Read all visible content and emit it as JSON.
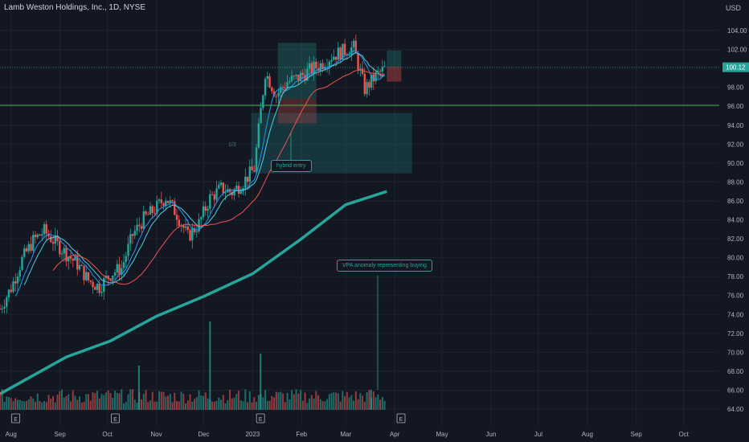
{
  "header": {
    "title": "Lamb Weston Holdings, Inc., 1D, NYSE",
    "currency": "USD"
  },
  "annotations": {
    "hybrid_entry": "hybrid entry",
    "vpa_note": "VPA anomaly representing buying",
    "ratio_label": "1/3"
  },
  "colors": {
    "background": "#131722",
    "bull": "#26a69a",
    "bear": "#ef5350",
    "sma_fast": "#2196f3",
    "sma_mid": "#4dd0e1",
    "sma_slow": "#ef5350",
    "sma_200": "#26a69a",
    "support_line": "#4caf50",
    "price_label_bg": "#26a69a"
  },
  "chart_data": {
    "type": "candlestick",
    "y_axis": {
      "ticks": [
        104,
        102,
        100,
        98,
        96,
        94,
        92,
        90,
        88,
        86,
        84,
        82,
        80,
        78,
        76,
        74,
        72,
        70,
        68,
        66,
        64
      ],
      "range": [
        63,
        105
      ],
      "unit": "USD"
    },
    "x_axis": {
      "labels": [
        "Aug",
        "Sep",
        "Oct",
        "Nov",
        "Dec",
        "2023",
        "Feb",
        "Mar",
        "Apr",
        "May",
        "Jun",
        "Jul",
        "Aug",
        "Sep",
        "Oct"
      ],
      "range": [
        "2022-07-25",
        "2023-10-20"
      ]
    },
    "last_price": "100.12",
    "support_level": 96.1,
    "daily_closes": [
      {
        "date": "2022-07-25",
        "close": 74.6
      },
      {
        "date": "2022-08-01",
        "close": 76.8
      },
      {
        "date": "2022-08-08",
        "close": 79.8
      },
      {
        "date": "2022-08-15",
        "close": 81.8
      },
      {
        "date": "2022-08-22",
        "close": 82.8
      },
      {
        "date": "2022-08-29",
        "close": 81.6
      },
      {
        "date": "2022-09-05",
        "close": 80.4
      },
      {
        "date": "2022-09-12",
        "close": 79.3
      },
      {
        "date": "2022-09-19",
        "close": 77.6
      },
      {
        "date": "2022-09-26",
        "close": 76.9
      },
      {
        "date": "2022-10-03",
        "close": 78.3
      },
      {
        "date": "2022-10-10",
        "close": 78.9
      },
      {
        "date": "2022-10-17",
        "close": 82.4
      },
      {
        "date": "2022-10-24",
        "close": 84.1
      },
      {
        "date": "2022-10-31",
        "close": 85.1
      },
      {
        "date": "2022-11-07",
        "close": 86.4
      },
      {
        "date": "2022-11-14",
        "close": 84.6
      },
      {
        "date": "2022-11-21",
        "close": 82.2
      },
      {
        "date": "2022-11-28",
        "close": 83.6
      },
      {
        "date": "2022-12-05",
        "close": 86.3
      },
      {
        "date": "2022-12-12",
        "close": 87.3
      },
      {
        "date": "2022-12-19",
        "close": 86.9
      },
      {
        "date": "2022-12-26",
        "close": 88.0
      },
      {
        "date": "2023-01-02",
        "close": 89.4
      },
      {
        "date": "2023-01-09",
        "close": 99.6
      },
      {
        "date": "2023-01-16",
        "close": 97.2
      },
      {
        "date": "2023-01-23",
        "close": 98.6
      },
      {
        "date": "2023-01-30",
        "close": 99.0
      },
      {
        "date": "2023-02-06",
        "close": 99.8
      },
      {
        "date": "2023-02-13",
        "close": 100.4
      },
      {
        "date": "2023-02-20",
        "close": 101.3
      },
      {
        "date": "2023-02-27",
        "close": 101.8
      },
      {
        "date": "2023-03-06",
        "close": 102.2
      },
      {
        "date": "2023-03-13",
        "close": 97.8
      },
      {
        "date": "2023-03-20",
        "close": 99.2
      },
      {
        "date": "2023-03-27",
        "close": 100.12
      }
    ],
    "sma_200": [
      {
        "date": "2022-07-25",
        "value": 65.6
      },
      {
        "date": "2022-09-05",
        "value": 69.5
      },
      {
        "date": "2022-10-03",
        "value": 71.2
      },
      {
        "date": "2022-11-01",
        "value": 73.8
      },
      {
        "date": "2022-12-01",
        "value": 75.9
      },
      {
        "date": "2023-01-01",
        "value": 78.3
      },
      {
        "date": "2023-02-01",
        "value": 82.0
      },
      {
        "date": "2023-03-01",
        "value": 85.6
      },
      {
        "date": "2023-03-27",
        "value": 87.0
      }
    ],
    "zones": [
      {
        "label": "1/3",
        "from": "2022-12-31",
        "to": "2023-04-12",
        "low": 88.9,
        "high": 95.3,
        "color": "#26a69a"
      }
    ],
    "volume_spike_date": "2023-03-17"
  }
}
